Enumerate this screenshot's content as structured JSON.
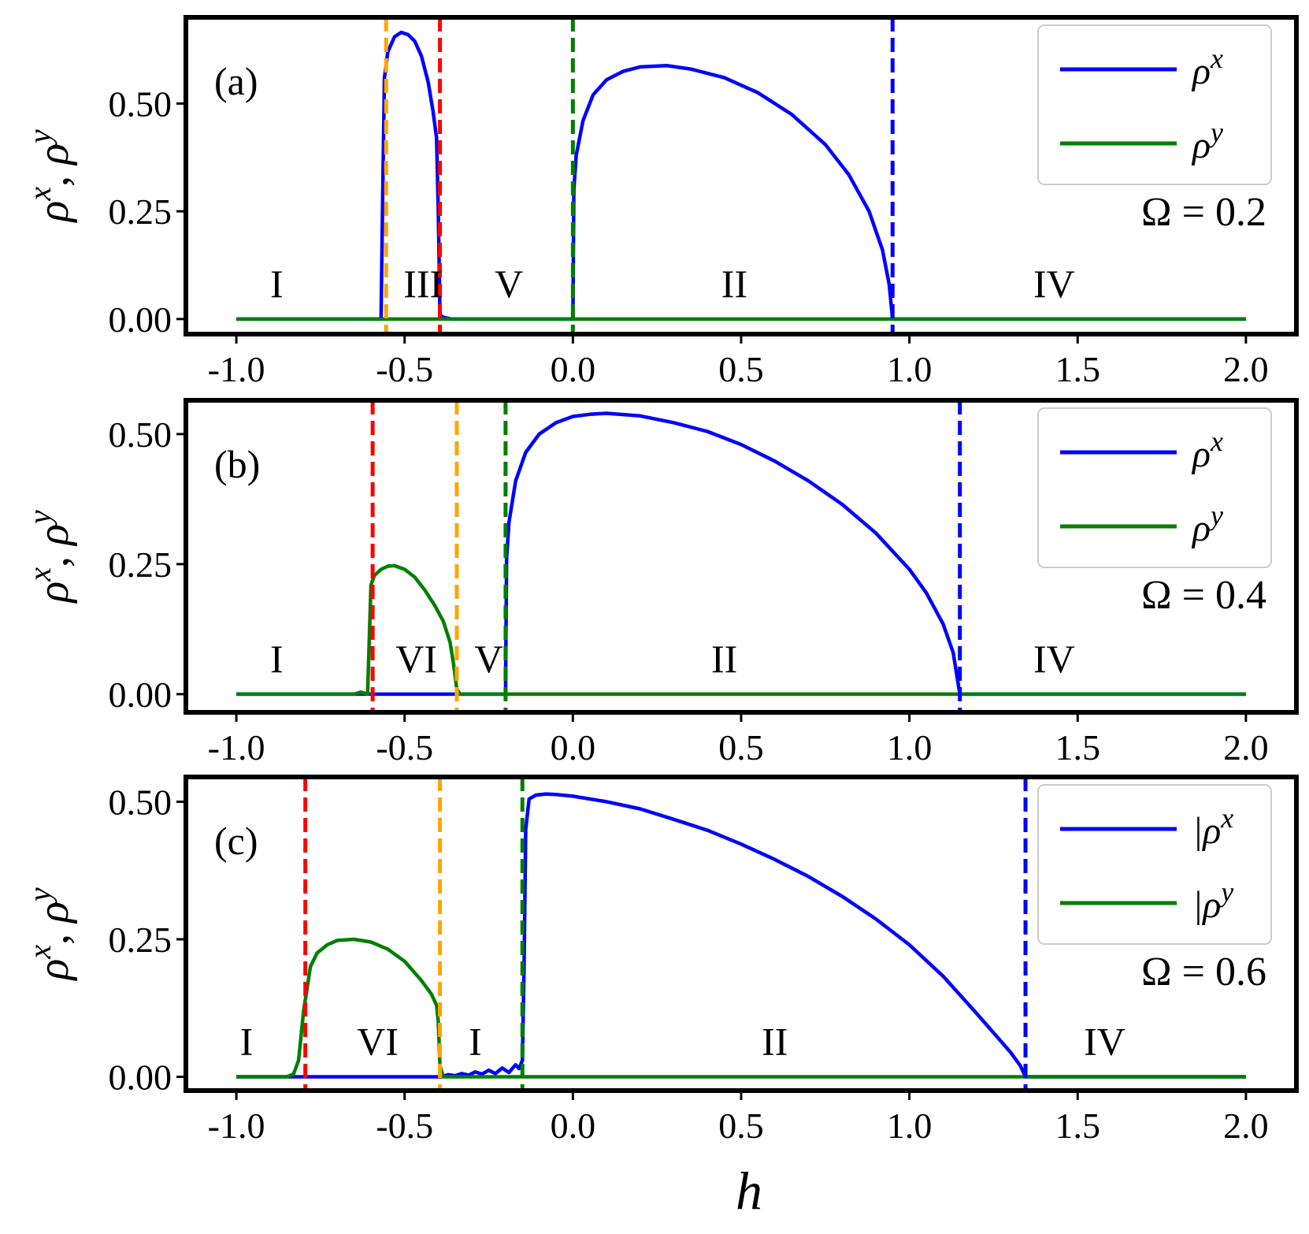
{
  "chart_data": [
    {
      "type": "line",
      "panel_label": "(a)",
      "omega_label": "Ω = 0.2",
      "ylabel": "ρx, ρy",
      "xlabel": "",
      "xlim": [
        -1.15,
        2.15
      ],
      "ylim": [
        -0.035,
        0.7
      ],
      "xticks": [
        -1.0,
        -0.5,
        0.0,
        0.5,
        1.0,
        1.5,
        2.0
      ],
      "xtick_labels": [
        "-1.0",
        "-0.5",
        "0.0",
        "0.5",
        "1.0",
        "1.5",
        "2.0"
      ],
      "yticks": [
        0.0,
        0.25,
        0.5
      ],
      "ytick_labels": [
        "0.00",
        "0.25",
        "0.50"
      ],
      "legend": {
        "placement": "top-right",
        "entries": [
          {
            "symbol": "ρ",
            "sup": "x",
            "color": "#0000ff"
          },
          {
            "symbol": "ρ",
            "sup": "y",
            "color": "#007f00"
          }
        ]
      },
      "vlines": [
        {
          "x": -0.555,
          "color": "#ffa500"
        },
        {
          "x": -0.395,
          "color": "#ff0000"
        },
        {
          "x": 0.0,
          "color": "#007f00"
        },
        {
          "x": 0.95,
          "color": "#0000ff"
        }
      ],
      "region_labels": [
        {
          "text": "I",
          "x": -0.88
        },
        {
          "text": "III",
          "x": -0.445
        },
        {
          "text": "V",
          "x": -0.19
        },
        {
          "text": "II",
          "x": 0.48
        },
        {
          "text": "IV",
          "x": 1.43
        }
      ],
      "series": [
        {
          "color": "#0000ff",
          "x": [
            -1.0,
            -0.57,
            -0.565,
            -0.56,
            -0.55,
            -0.53,
            -0.51,
            -0.49,
            -0.47,
            -0.45,
            -0.43,
            -0.415,
            -0.405,
            -0.4,
            -0.395,
            -0.385,
            -0.36,
            0.0,
            0.003,
            0.01,
            0.03,
            0.06,
            0.1,
            0.15,
            0.2,
            0.28,
            0.35,
            0.45,
            0.55,
            0.65,
            0.75,
            0.82,
            0.88,
            0.92,
            0.94,
            0.95,
            1.0,
            2.0
          ],
          "y": [
            0.0,
            0.0,
            0.3,
            0.56,
            0.62,
            0.655,
            0.665,
            0.66,
            0.645,
            0.61,
            0.55,
            0.48,
            0.42,
            0.25,
            0.01,
            0.004,
            0.0,
            0.0,
            0.3,
            0.38,
            0.46,
            0.52,
            0.555,
            0.575,
            0.585,
            0.588,
            0.58,
            0.56,
            0.525,
            0.475,
            0.405,
            0.335,
            0.25,
            0.16,
            0.08,
            0.0,
            0.0,
            0.0
          ]
        },
        {
          "color": "#007f00",
          "x": [
            -1.0,
            2.0
          ],
          "y": [
            0.0,
            0.0
          ]
        }
      ]
    },
    {
      "type": "line",
      "panel_label": "(b)",
      "omega_label": "Ω = 0.4",
      "ylabel": "ρx, ρy",
      "xlabel": "",
      "xlim": [
        -1.15,
        2.15
      ],
      "ylim": [
        -0.035,
        0.565
      ],
      "xticks": [
        -1.0,
        -0.5,
        0.0,
        0.5,
        1.0,
        1.5,
        2.0
      ],
      "xtick_labels": [
        "-1.0",
        "-0.5",
        "0.0",
        "0.5",
        "1.0",
        "1.5",
        "2.0"
      ],
      "yticks": [
        0.0,
        0.25,
        0.5
      ],
      "ytick_labels": [
        "0.00",
        "0.25",
        "0.50"
      ],
      "legend": {
        "placement": "top-right",
        "entries": [
          {
            "symbol": "ρ",
            "sup": "x",
            "color": "#0000ff"
          },
          {
            "symbol": "ρ",
            "sup": "y",
            "color": "#007f00"
          }
        ]
      },
      "vlines": [
        {
          "x": -0.595,
          "color": "#ff0000"
        },
        {
          "x": -0.345,
          "color": "#ffa500"
        },
        {
          "x": -0.2,
          "color": "#007f00"
        },
        {
          "x": 1.15,
          "color": "#0000ff"
        }
      ],
      "region_labels": [
        {
          "text": "I",
          "x": -0.88
        },
        {
          "text": "VI",
          "x": -0.465
        },
        {
          "text": "V",
          "x": -0.25
        },
        {
          "text": "II",
          "x": 0.45
        },
        {
          "text": "IV",
          "x": 1.43
        }
      ],
      "series": [
        {
          "color": "#0000ff",
          "x": [
            -1.0,
            -0.2,
            -0.197,
            -0.19,
            -0.17,
            -0.14,
            -0.1,
            -0.05,
            0.0,
            0.05,
            0.1,
            0.2,
            0.3,
            0.4,
            0.5,
            0.6,
            0.7,
            0.8,
            0.9,
            1.0,
            1.05,
            1.1,
            1.13,
            1.15,
            2.0
          ],
          "y": [
            0.0,
            0.0,
            0.26,
            0.33,
            0.41,
            0.465,
            0.5,
            0.522,
            0.534,
            0.538,
            0.54,
            0.535,
            0.522,
            0.505,
            0.48,
            0.448,
            0.41,
            0.365,
            0.31,
            0.24,
            0.195,
            0.135,
            0.08,
            0.0,
            0.0
          ]
        },
        {
          "color": "#007f00",
          "x": [
            -1.0,
            -0.65,
            -0.63,
            -0.61,
            -0.6,
            -0.59,
            -0.57,
            -0.55,
            -0.53,
            -0.5,
            -0.47,
            -0.44,
            -0.41,
            -0.385,
            -0.365,
            -0.355,
            -0.345,
            -0.335,
            2.0
          ],
          "y": [
            0.0,
            0.0,
            0.004,
            0.0,
            0.21,
            0.228,
            0.24,
            0.246,
            0.247,
            0.24,
            0.225,
            0.2,
            0.17,
            0.14,
            0.1,
            0.06,
            0.01,
            0.0,
            0.0
          ]
        }
      ]
    },
    {
      "type": "line",
      "panel_label": "(c)",
      "omega_label": "Ω = 0.6",
      "ylabel": "ρx, ρy",
      "xlabel": "h",
      "xlim": [
        -1.15,
        2.15
      ],
      "ylim": [
        -0.025,
        0.545
      ],
      "xticks": [
        -1.0,
        -0.5,
        0.0,
        0.5,
        1.0,
        1.5,
        2.0
      ],
      "xtick_labels": [
        "-1.0",
        "-0.5",
        "0.0",
        "0.5",
        "1.0",
        "1.5",
        "2.0"
      ],
      "yticks": [
        0.0,
        0.25,
        0.5
      ],
      "ytick_labels": [
        "0.00",
        "0.25",
        "0.50"
      ],
      "legend": {
        "placement": "top-right",
        "entries": [
          {
            "symbol": "|ρ",
            "sup": "x",
            "color": "#0000ff"
          },
          {
            "symbol": "|ρ",
            "sup": "y",
            "color": "#007f00"
          }
        ]
      },
      "vlines": [
        {
          "x": -0.795,
          "color": "#ff0000"
        },
        {
          "x": -0.395,
          "color": "#ffa500"
        },
        {
          "x": -0.15,
          "color": "#007f00"
        },
        {
          "x": 1.345,
          "color": "#0000ff"
        }
      ],
      "region_labels": [
        {
          "text": "I",
          "x": -0.97
        },
        {
          "text": "VI",
          "x": -0.58
        },
        {
          "text": "I",
          "x": -0.29
        },
        {
          "text": "II",
          "x": 0.6
        },
        {
          "text": "IV",
          "x": 1.58
        }
      ],
      "series": [
        {
          "color": "#0000ff",
          "x": [
            -1.0,
            -0.39,
            -0.37,
            -0.35,
            -0.33,
            -0.31,
            -0.29,
            -0.27,
            -0.25,
            -0.23,
            -0.21,
            -0.19,
            -0.17,
            -0.16,
            -0.15,
            -0.145,
            -0.14,
            -0.13,
            -0.11,
            -0.08,
            -0.05,
            0.0,
            0.1,
            0.2,
            0.3,
            0.4,
            0.5,
            0.6,
            0.7,
            0.8,
            0.9,
            1.0,
            1.1,
            1.2,
            1.25,
            1.3,
            1.33,
            1.345,
            2.0
          ],
          "y": [
            0.0,
            0.0,
            0.004,
            0.002,
            0.006,
            0.003,
            0.009,
            0.005,
            0.012,
            0.006,
            0.016,
            0.008,
            0.022,
            0.015,
            0.03,
            0.2,
            0.45,
            0.505,
            0.512,
            0.514,
            0.513,
            0.51,
            0.5,
            0.487,
            0.468,
            0.448,
            0.423,
            0.395,
            0.364,
            0.328,
            0.287,
            0.24,
            0.183,
            0.115,
            0.08,
            0.045,
            0.02,
            0.0,
            0.0
          ]
        },
        {
          "color": "#007f00",
          "x": [
            -1.0,
            -0.85,
            -0.83,
            -0.815,
            -0.8,
            -0.79,
            -0.78,
            -0.76,
            -0.73,
            -0.7,
            -0.65,
            -0.6,
            -0.55,
            -0.5,
            -0.45,
            -0.42,
            -0.405,
            -0.4,
            -0.395,
            -0.385,
            2.0
          ],
          "y": [
            0.0,
            0.0,
            0.005,
            0.03,
            0.12,
            0.16,
            0.2,
            0.225,
            0.24,
            0.248,
            0.25,
            0.245,
            0.232,
            0.21,
            0.175,
            0.15,
            0.13,
            0.1,
            0.02,
            0.0,
            0.0
          ]
        }
      ]
    }
  ]
}
